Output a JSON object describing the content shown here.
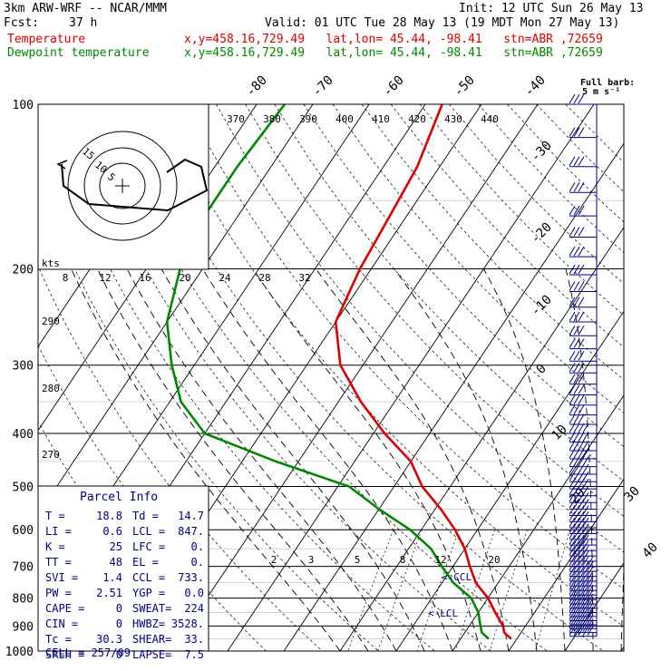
{
  "header": {
    "model": "3km ARW-WRF -- NCAR/MMM",
    "init": "Init: 12 UTC Sun 26 May 13",
    "fcst_label": "Fcst:",
    "fcst_value": "37 h",
    "valid": "Valid: 01 UTC Tue 28 May 13 (19 MDT Mon 27 May 13)",
    "temp_label": "Temperature",
    "temp_info": "x,y=458.16,729.49   lat,lon= 45.44, -98.41   stn=ABR ,72659",
    "dew_label": "Dewpoint temperature",
    "dew_info": "x,y=458.16,729.49   lat,lon= 45.44, -98.41   stn=ABR ,72659",
    "barb_legend": "Full barb:",
    "barb_speed": "5 m s⁻¹"
  },
  "parcel": {
    "title": "Parcel Info",
    "rows": [
      [
        "T  =",
        "18.8",
        "Td =",
        "14.7"
      ],
      [
        "LI =",
        "0.6",
        "LCL =",
        "847."
      ],
      [
        "K  =",
        "25",
        "LFC =",
        "0."
      ],
      [
        "TT =",
        "48",
        "EL  =",
        "0."
      ],
      [
        "SVI =",
        "1.4",
        "CCL =",
        "733."
      ],
      [
        "PW =",
        "2.51",
        "YGP =",
        "0.0"
      ],
      [
        "CAPE =",
        "0",
        "SWEAT=",
        "224"
      ],
      [
        "CIN =",
        "0",
        "HWBZ=",
        "3528."
      ],
      [
        "Tc =",
        "30.3",
        "SHEAR=",
        "33."
      ],
      [
        "SREH =",
        "0",
        "LAPSE=",
        "7.5"
      ]
    ],
    "cell": "CELL = 257/09"
  },
  "hodograph": {
    "units": "kts",
    "ring_labels": [
      "15",
      "10",
      "5"
    ]
  },
  "chart_data": {
    "type": "line",
    "title": "",
    "xlabel": "",
    "ylabel": "",
    "pressure_levels": [
      100,
      200,
      300,
      400,
      500,
      600,
      700,
      800,
      900,
      1000
    ],
    "skew_labels": [
      "-80",
      "-70",
      "-60",
      "-50",
      "-40",
      "-30",
      "-20",
      "-10",
      "0",
      "10",
      "20",
      "30",
      "40"
    ],
    "theta_labels": [
      "370",
      "380",
      "390",
      "400",
      "410",
      "420",
      "430",
      "440"
    ],
    "mixing_ratio_labels": [
      "8",
      "12",
      "16",
      "20",
      "24",
      "28",
      "32"
    ],
    "mixing_ratio_lower_labels": [
      "2",
      "3",
      "5",
      "8",
      "12",
      "20"
    ],
    "theta_e_labels": [
      "290",
      "280",
      "270"
    ],
    "annotations": [
      "<-CCL",
      "<-LCL"
    ],
    "series": [
      {
        "name": "Temperature",
        "color": "#dd0000",
        "points": [
          [
            100,
            -57
          ],
          [
            130,
            -54
          ],
          [
            160,
            -53
          ],
          [
            200,
            -52
          ],
          [
            250,
            -50
          ],
          [
            300,
            -44
          ],
          [
            350,
            -36
          ],
          [
            400,
            -28
          ],
          [
            450,
            -20
          ],
          [
            500,
            -15
          ],
          [
            550,
            -9
          ],
          [
            600,
            -4
          ],
          [
            650,
            0
          ],
          [
            700,
            3
          ],
          [
            750,
            6
          ],
          [
            800,
            10
          ],
          [
            850,
            13
          ],
          [
            900,
            16
          ],
          [
            925,
            17
          ],
          [
            950,
            19
          ]
        ]
      },
      {
        "name": "Dewpoint temperature",
        "color": "#008800",
        "points": [
          [
            100,
            -85
          ],
          [
            130,
            -86
          ],
          [
            160,
            -86
          ],
          [
            200,
            -84
          ],
          [
            250,
            -80
          ],
          [
            300,
            -74
          ],
          [
            350,
            -68
          ],
          [
            400,
            -60
          ],
          [
            450,
            -44
          ],
          [
            500,
            -28
          ],
          [
            550,
            -20
          ],
          [
            600,
            -12
          ],
          [
            650,
            -6
          ],
          [
            700,
            -2
          ],
          [
            750,
            2
          ],
          [
            800,
            7
          ],
          [
            850,
            10
          ],
          [
            900,
            12
          ],
          [
            925,
            13
          ],
          [
            950,
            15
          ]
        ]
      }
    ],
    "wind_pressures": [
      100,
      115,
      130,
      145,
      160,
      175,
      190,
      205,
      220,
      235,
      250,
      265,
      280,
      295,
      310,
      325,
      340,
      355,
      370,
      385,
      400,
      415,
      430,
      445,
      460,
      475,
      490,
      505,
      520,
      535,
      550,
      565,
      580,
      595,
      610,
      625,
      640,
      655,
      670,
      685,
      700,
      715,
      730,
      745,
      760,
      775,
      790,
      805,
      820,
      835,
      850,
      865,
      880,
      895,
      910,
      925,
      940
    ]
  }
}
